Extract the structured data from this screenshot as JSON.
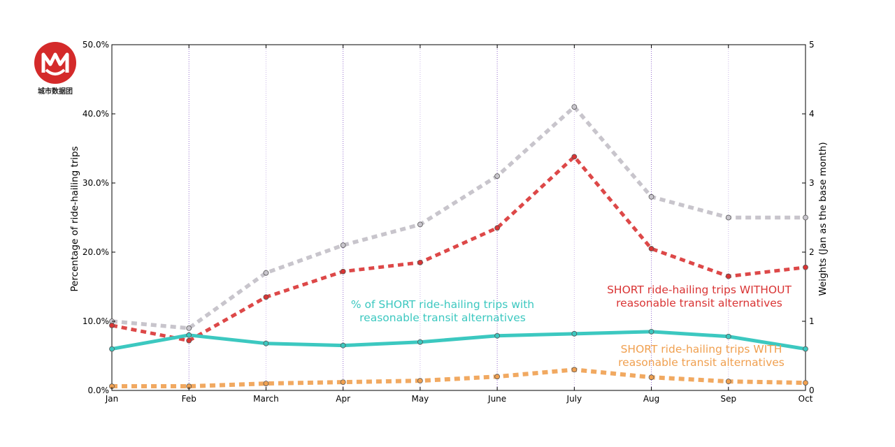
{
  "logo": {
    "text": "城市数据团"
  },
  "colors": {
    "grey": "#c8c5cc",
    "red": "#d93434",
    "teal": "#3cc8c0",
    "orange": "#f0a050",
    "gridline": "#8a5cc8"
  },
  "chart_data": {
    "type": "line",
    "categories": [
      "Jan",
      "Feb",
      "March",
      "Apr",
      "May",
      "June",
      "July",
      "Aug",
      "Sep",
      "Oct"
    ],
    "left_axis": {
      "label": "Percentage of ride-hailing trips",
      "range": [
        0,
        50
      ],
      "ticks": [
        "0.0%",
        "10.0%",
        "20.0%",
        "30.0%",
        "40.0%",
        "50.0%"
      ]
    },
    "right_axis": {
      "label": "Weights (Jan as the base month)",
      "range": [
        0,
        5
      ],
      "ticks": [
        "0",
        "1",
        "2",
        "3",
        "4",
        "5"
      ]
    },
    "series": [
      {
        "name": "Weights (Jan as the base month)",
        "axis": "right",
        "style": "dotted",
        "color_key": "grey",
        "values": [
          1.0,
          0.9,
          1.7,
          2.1,
          2.4,
          3.1,
          4.1,
          2.8,
          2.5,
          2.5
        ]
      },
      {
        "name": "SHORT ride-hailing trips WITHOUT reasonable transit alternatives",
        "axis": "left",
        "style": "dotted",
        "color_key": "red",
        "values": [
          9.4,
          7.2,
          13.5,
          17.2,
          18.5,
          23.5,
          33.8,
          20.5,
          16.5,
          17.8
        ]
      },
      {
        "name": "% of SHORT ride-hailing trips with reasonable transit alternatives",
        "axis": "left",
        "style": "solid",
        "color_key": "teal",
        "values": [
          6.0,
          8.0,
          6.8,
          6.5,
          7.0,
          7.9,
          8.2,
          8.5,
          7.8,
          6.0
        ]
      },
      {
        "name": "SHORT ride-hailing trips WITH reasonable transit alternatives",
        "axis": "left",
        "style": "dotted",
        "color_key": "orange",
        "values": [
          0.6,
          0.6,
          1.0,
          1.2,
          1.4,
          2.0,
          3.0,
          1.9,
          1.3,
          1.1
        ]
      }
    ],
    "annotations": [
      {
        "lines": [
          "% of SHORT ride-hailing trips with",
          "reasonable transit alternatives"
        ],
        "color_key": "teal"
      },
      {
        "lines": [
          "SHORT ride-hailing trips WITHOUT",
          "reasonable transit alternatives"
        ],
        "color_key": "red"
      },
      {
        "lines": [
          "SHORT ride-hailing trips WITH",
          "reasonable transit alternatives"
        ],
        "color_key": "orange"
      }
    ]
  }
}
